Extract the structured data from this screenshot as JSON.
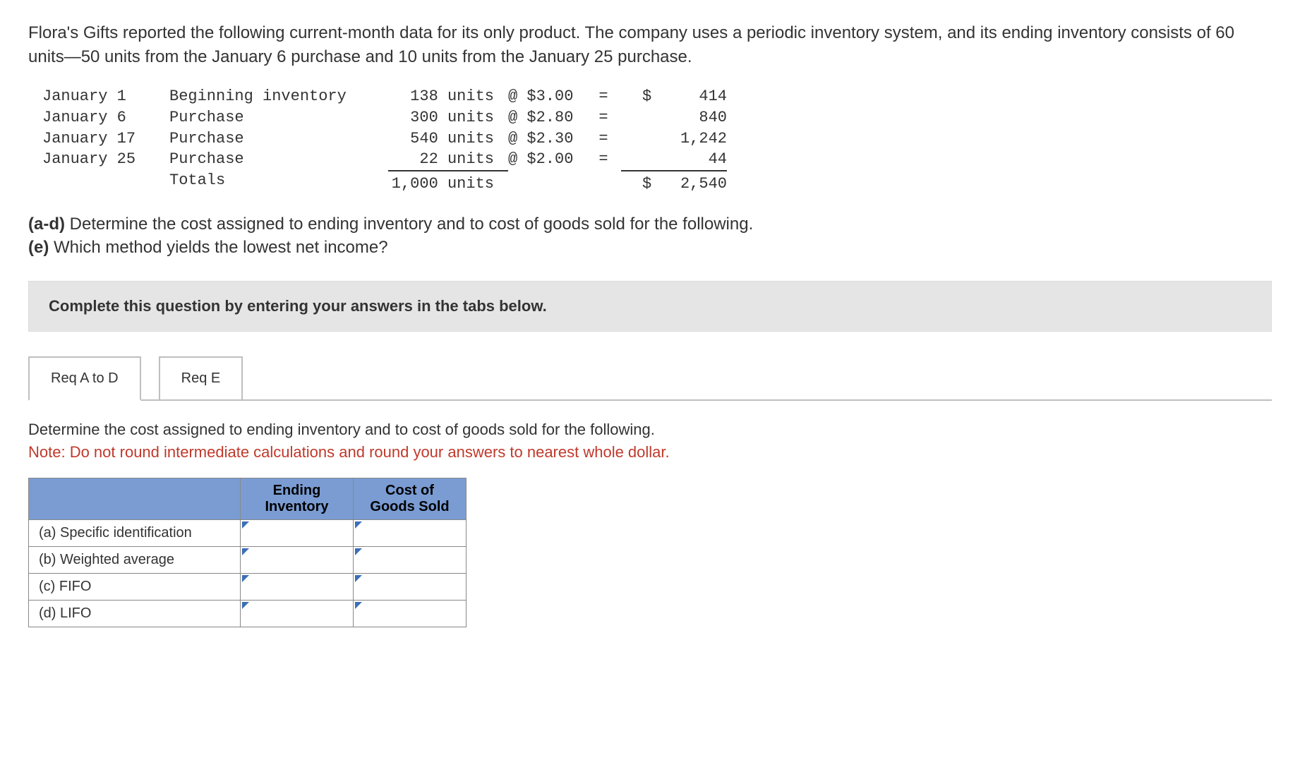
{
  "intro": "Flora's Gifts reported the following current-month data for its only product. The company uses a periodic inventory system, and its ending inventory consists of 60 units—50 units from the January 6 purchase and 10 units from the January 25 purchase.",
  "ledger": {
    "rows": [
      {
        "date": "January 1",
        "desc": "Beginning inventory",
        "units": "138 units",
        "at": "@ $3.00",
        "eq": "=",
        "dollar": "$",
        "amt": "414"
      },
      {
        "date": "January 6",
        "desc": "Purchase",
        "units": "300 units",
        "at": "@ $2.80",
        "eq": "=",
        "dollar": "",
        "amt": "840"
      },
      {
        "date": "January 17",
        "desc": "Purchase",
        "units": "540 units",
        "at": "@ $2.30",
        "eq": "=",
        "dollar": "",
        "amt": "1,242"
      },
      {
        "date": "January 25",
        "desc": "Purchase",
        "units": "22 units",
        "at": "@ $2.00",
        "eq": "=",
        "dollar": "",
        "amt": "44"
      }
    ],
    "totals": {
      "desc": "Totals",
      "units": "1,000 units",
      "dollar": "$",
      "amt": "2,540"
    }
  },
  "questions": {
    "line1_part": "(a-d)",
    "line1_text": " Determine the cost assigned to ending inventory and to cost of goods sold for the following.",
    "line2_part": "(e)",
    "line2_text": " Which method yields the lowest net income?"
  },
  "instruction": "Complete this question by entering your answers in the tabs below.",
  "tabs": {
    "tab1": "Req A to D",
    "tab2": "Req E"
  },
  "panel": {
    "line1": "Determine the cost assigned to ending inventory and to cost of goods sold for the following.",
    "note": "Note: Do not round intermediate calculations and round your answers to nearest whole dollar."
  },
  "answer_table": {
    "headers": {
      "blank": "",
      "col1": "Ending Inventory",
      "col2": "Cost of Goods Sold"
    },
    "rows": [
      {
        "label": "(a) Specific identification"
      },
      {
        "label": "(b) Weighted average"
      },
      {
        "label": "(c) FIFO"
      },
      {
        "label": "(d) LIFO"
      }
    ]
  },
  "colors": {
    "header_bg": "#7a9cd3",
    "note_color": "#c0392b",
    "tri_color": "#3b6fb6"
  }
}
